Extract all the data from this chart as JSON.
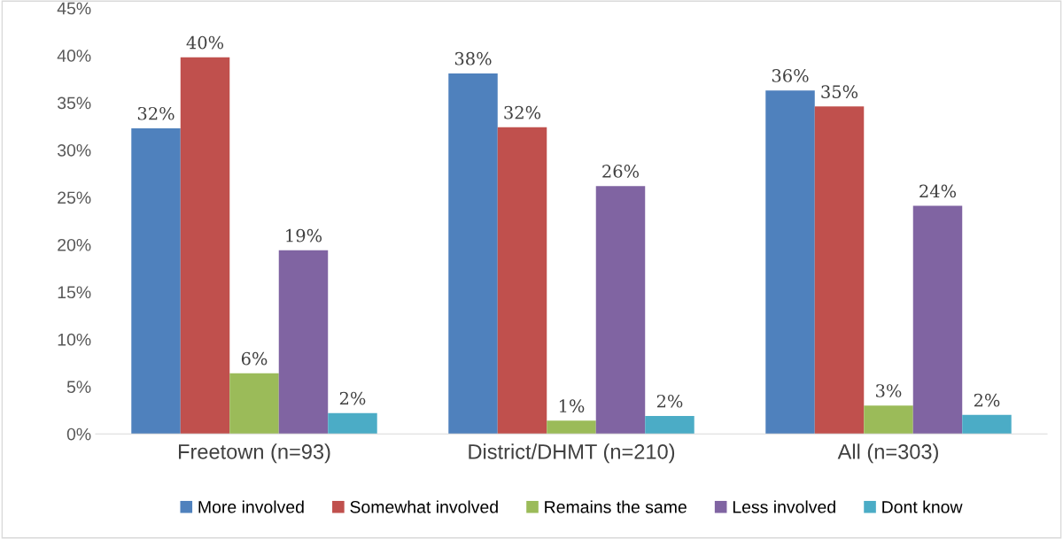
{
  "chart_data": {
    "type": "bar",
    "categories": [
      "Freetown (n=93)",
      "District/DHMT (n=210)",
      "All (n=303)"
    ],
    "series": [
      {
        "name": "More involved",
        "color": "#4f81bd",
        "values": [
          32.3,
          38.1,
          36.3
        ],
        "value_labels": [
          "32%",
          "38%",
          "36%"
        ]
      },
      {
        "name": "Somewhat involved",
        "color": "#c0504d",
        "values": [
          39.8,
          32.4,
          34.6
        ],
        "value_labels": [
          "40%",
          "32%",
          "35%"
        ]
      },
      {
        "name": "Remains the same",
        "color": "#9bbb59",
        "values": [
          6.4,
          1.4,
          3.0
        ],
        "value_labels": [
          "6%",
          "1%",
          "3%"
        ]
      },
      {
        "name": "Less involved",
        "color": "#8064a2",
        "values": [
          19.4,
          26.2,
          24.1
        ],
        "value_labels": [
          "19%",
          "26%",
          "24%"
        ]
      },
      {
        "name": "Dont know",
        "color": "#4bacc6",
        "values": [
          2.2,
          1.9,
          2.0
        ],
        "value_labels": [
          "2%",
          "2%",
          "2%"
        ]
      }
    ],
    "ylim": [
      0,
      45
    ],
    "yticks": [
      {
        "value": 0,
        "label": "0%"
      },
      {
        "value": 5,
        "label": "5%"
      },
      {
        "value": 10,
        "label": "10%"
      },
      {
        "value": 15,
        "label": "15%"
      },
      {
        "value": 20,
        "label": "20%"
      },
      {
        "value": 25,
        "label": "25%"
      },
      {
        "value": 30,
        "label": "30%"
      },
      {
        "value": 35,
        "label": "35%"
      },
      {
        "value": 40,
        "label": "40%"
      },
      {
        "value": 45,
        "label": "45%"
      }
    ],
    "legend": "bottom"
  }
}
